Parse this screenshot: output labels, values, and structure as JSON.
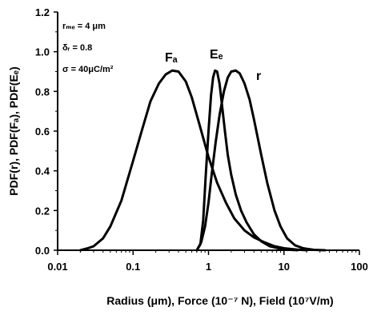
{
  "chart_data": {
    "type": "line",
    "title": "",
    "xlabel": "Radius (μm), Force (10⁻⁷ N), Field (10⁷V/m)",
    "ylabel": "PDF(r), PDF(Fₐ), PDF(Eₑ)",
    "xscale": "log",
    "xlim": [
      0.01,
      100
    ],
    "ylim": [
      0,
      1.2
    ],
    "x_ticks": [
      {
        "value": 0.01,
        "label": "0.01"
      },
      {
        "value": 0.1,
        "label": "0.1"
      },
      {
        "value": 1,
        "label": "1"
      },
      {
        "value": 10,
        "label": "10"
      },
      {
        "value": 100,
        "label": "100"
      }
    ],
    "y_ticks": [
      {
        "value": 0,
        "label": "0.0"
      },
      {
        "value": 0.2,
        "label": "0.2"
      },
      {
        "value": 0.4,
        "label": "0.4"
      },
      {
        "value": 0.6,
        "label": "0.6"
      },
      {
        "value": 0.8,
        "label": "0.8"
      },
      {
        "value": 1.0,
        "label": "1.0"
      },
      {
        "value": 1.2,
        "label": "1.2"
      }
    ],
    "grid": false,
    "legend": "none",
    "annotations": [
      {
        "text": "rₘₑ = 4 μm"
      },
      {
        "text": "δᵣ = 0.8"
      },
      {
        "text": "σ = 40μC/m²"
      }
    ],
    "series": [
      {
        "name": "Fₐ",
        "x": [
          0.02,
          0.025,
          0.03,
          0.04,
          0.05,
          0.07,
          0.1,
          0.13,
          0.17,
          0.22,
          0.27,
          0.33,
          0.4,
          0.5,
          0.6,
          0.75,
          1.0,
          1.3,
          1.7,
          2.2,
          3.0,
          4.0,
          5.5,
          7.5,
          10,
          15,
          20
        ],
        "y": [
          0.0,
          0.01,
          0.02,
          0.06,
          0.12,
          0.25,
          0.45,
          0.6,
          0.75,
          0.84,
          0.885,
          0.905,
          0.9,
          0.85,
          0.77,
          0.64,
          0.47,
          0.34,
          0.24,
          0.16,
          0.1,
          0.065,
          0.04,
          0.02,
          0.01,
          0.003,
          0.0
        ]
      },
      {
        "name": "Eₑ",
        "x": [
          0.7,
          0.78,
          0.85,
          0.92,
          1.0,
          1.08,
          1.15,
          1.22,
          1.3,
          1.4,
          1.5,
          1.65,
          1.8,
          2.0,
          2.3,
          2.7,
          3.2,
          4.0,
          5.0,
          6.5,
          8.5,
          11,
          15
        ],
        "y": [
          0.0,
          0.03,
          0.15,
          0.38,
          0.6,
          0.78,
          0.87,
          0.905,
          0.9,
          0.84,
          0.74,
          0.6,
          0.48,
          0.38,
          0.28,
          0.2,
          0.14,
          0.08,
          0.045,
          0.02,
          0.01,
          0.003,
          0.0
        ]
      },
      {
        "name": "r",
        "x": [
          0.7,
          0.8,
          0.9,
          1.0,
          1.1,
          1.25,
          1.4,
          1.6,
          1.8,
          2.0,
          2.3,
          2.6,
          3.0,
          3.5,
          4.0,
          5.0,
          6.0,
          7.5,
          9.0,
          11,
          14,
          18,
          25,
          35
        ],
        "y": [
          0.0,
          0.04,
          0.12,
          0.24,
          0.38,
          0.55,
          0.68,
          0.8,
          0.87,
          0.9,
          0.905,
          0.89,
          0.84,
          0.76,
          0.66,
          0.48,
          0.34,
          0.2,
          0.12,
          0.06,
          0.025,
          0.01,
          0.002,
          0.0
        ]
      }
    ]
  }
}
